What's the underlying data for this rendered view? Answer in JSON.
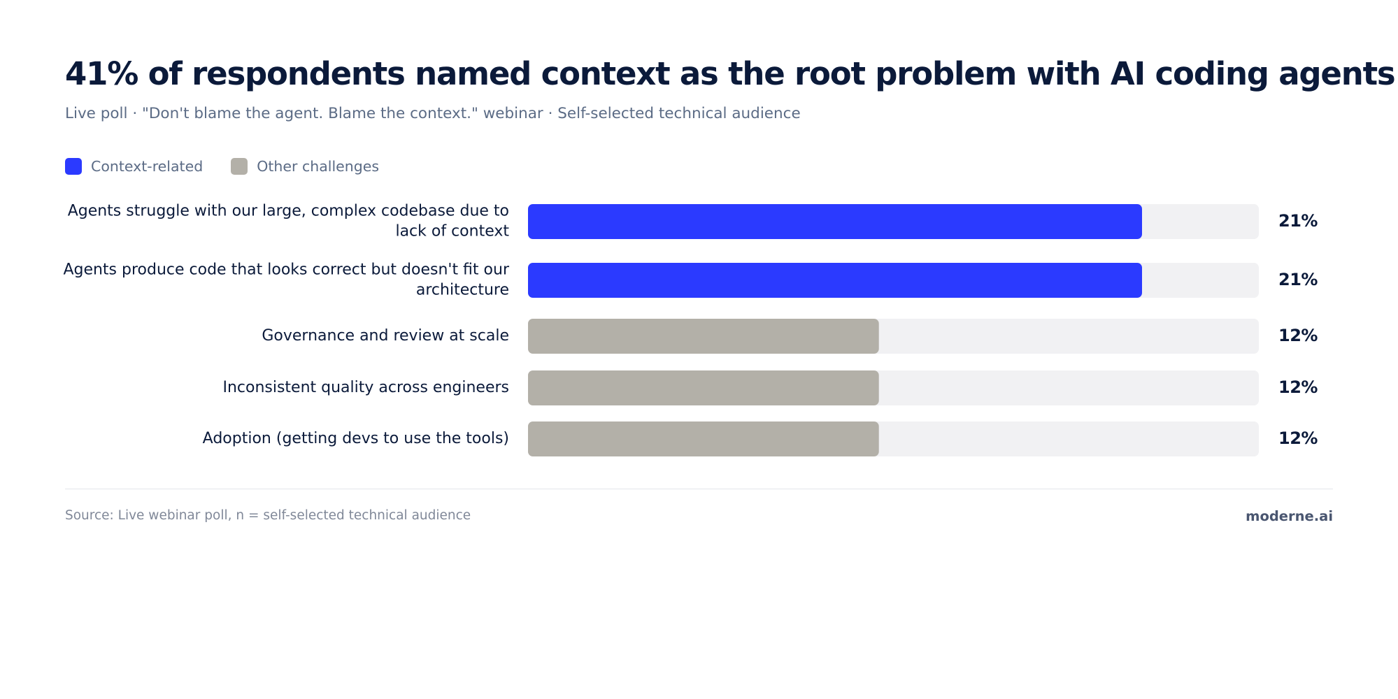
{
  "header": {
    "title": "41% of respondents named context as the root problem with AI coding agents",
    "subtitle": "Live poll · \"Don't blame the agent. Blame the context.\" webinar · Self-selected technical audience"
  },
  "legend": [
    {
      "label": "Context-related",
      "color": "#2b3aff"
    },
    {
      "label": "Other challenges",
      "color": "#b3b0a8"
    }
  ],
  "chart_data": {
    "type": "bar",
    "orientation": "horizontal",
    "title": "41% of respondents named context as the root problem with AI coding agents",
    "categories": [
      [
        "Agents struggle with our large, complex codebase due to",
        "lack of context"
      ],
      [
        "Agents produce code that looks correct but doesn't fit our",
        "architecture"
      ],
      [
        "Governance and review at scale"
      ],
      [
        "Inconsistent quality across engineers"
      ],
      [
        "Adoption (getting devs to use the tools)"
      ]
    ],
    "values": [
      21,
      21,
      12,
      12,
      12
    ],
    "value_labels": [
      "21%",
      "21%",
      "12%",
      "12%",
      "12%"
    ],
    "groups": [
      "Context-related",
      "Context-related",
      "Other challenges",
      "Other challenges",
      "Other challenges"
    ],
    "colors": {
      "Context-related": "#2b3aff",
      "Other challenges": "#b3b0a8",
      "track": "#f1f1f3"
    },
    "xlim": [
      0,
      25
    ],
    "grid": false,
    "legend_position": "top-left"
  },
  "footer": {
    "source": "Source: Live webinar poll, n = self-selected technical audience",
    "brand": "moderne.ai"
  }
}
